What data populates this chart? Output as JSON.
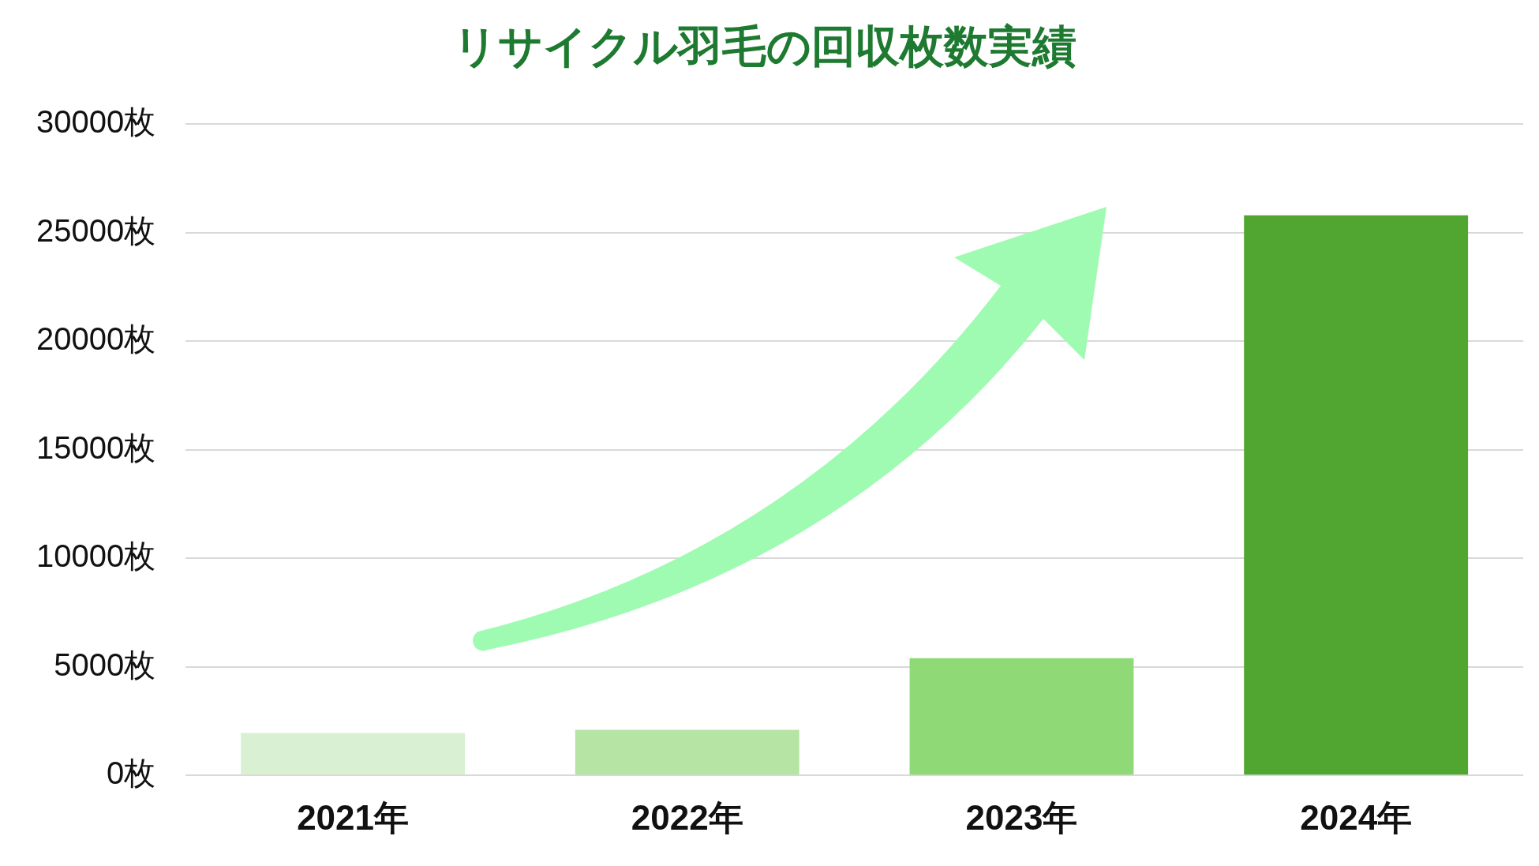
{
  "chart_data": {
    "type": "bar",
    "title": "リサイクル羽毛の回収枚数実績",
    "categories": [
      "2021年",
      "2022年",
      "2023年",
      "2024年"
    ],
    "values": [
      1950,
      2100,
      5400,
      25800
    ],
    "colors": [
      "#d9f0d3",
      "#b5e4a5",
      "#8fd977",
      "#50a630"
    ],
    "ylim": [
      0,
      30000
    ],
    "yticks": [
      {
        "value": 0,
        "label": "0枚"
      },
      {
        "value": 5000,
        "label": "5000枚"
      },
      {
        "value": 10000,
        "label": "10000枚"
      },
      {
        "value": 15000,
        "label": "15000枚"
      },
      {
        "value": 20000,
        "label": "20000枚"
      },
      {
        "value": 25000,
        "label": "25000枚"
      },
      {
        "value": 30000,
        "label": "30000枚"
      }
    ],
    "grid": "y"
  }
}
